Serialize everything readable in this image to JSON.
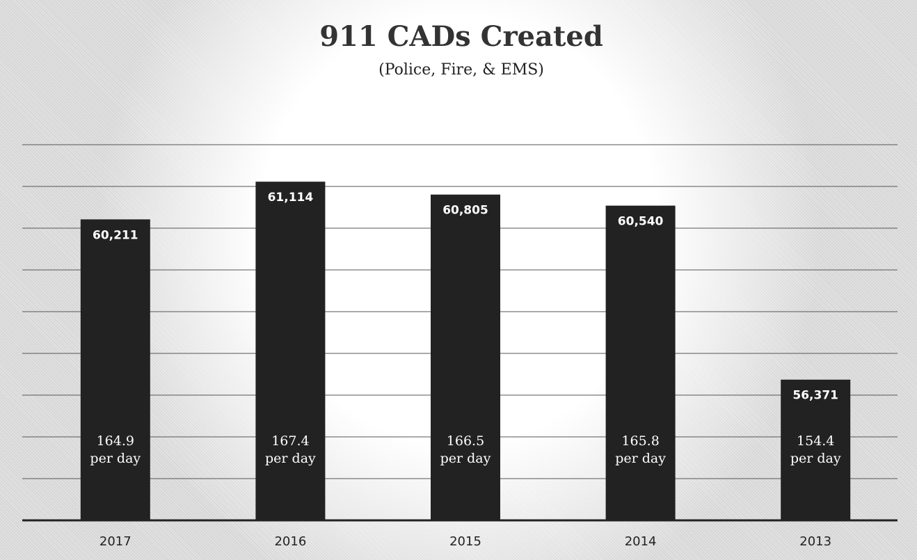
{
  "chart_data": {
    "type": "bar",
    "title": "911 CADs Created",
    "subtitle": "(Police, Fire, & EMS)",
    "categories": [
      "2017",
      "2016",
      "2015",
      "2014",
      "2013"
    ],
    "values": [
      60211,
      61114,
      60805,
      60540,
      56371
    ],
    "value_labels": [
      "60,211",
      "61,114",
      "60,805",
      "60,540",
      "56,371"
    ],
    "per_day_values": [
      "164.9",
      "167.4",
      "166.5",
      "165.8",
      "154.4"
    ],
    "per_day_unit": "per day",
    "ylim": [
      53000,
      62000
    ],
    "gridlines": true,
    "bar_color": "#222222",
    "xlabel": "",
    "ylabel": ""
  }
}
